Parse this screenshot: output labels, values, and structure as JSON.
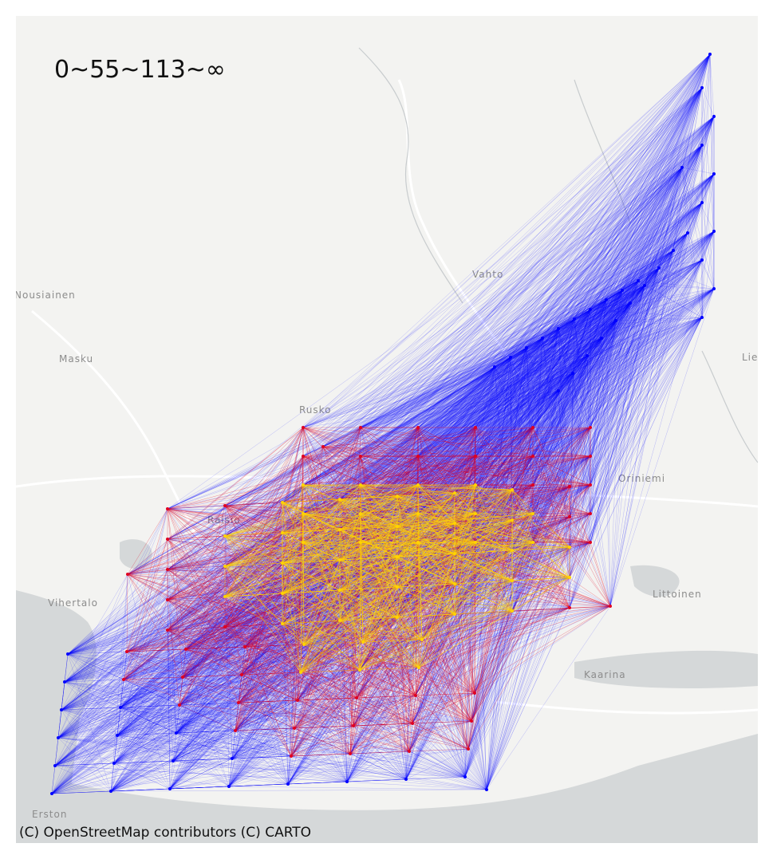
{
  "map": {
    "legend_title": "0~55~113~∞",
    "attribution": "(C) OpenStreetMap contributors (C) CARTO",
    "place_labels": [
      "Nousiainen",
      "Masku",
      "Rusko",
      "Vahto",
      "Raisio",
      "Littoinen",
      "Kaarina",
      "Lieto asema",
      "Vihertalo",
      "Erston",
      "Oriniemi"
    ],
    "colors": {
      "land": "#f3f3f1",
      "water": "#d5d8d9",
      "low_band": "#0000ff",
      "mid_band": "#e00020",
      "high_band": "#ffd400"
    },
    "bands": [
      "0",
      "55",
      "113",
      "∞"
    ]
  }
}
